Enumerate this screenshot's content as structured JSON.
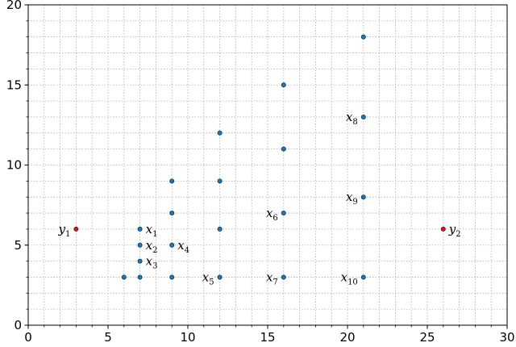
{
  "chart_data": {
    "type": "scatter",
    "title": "",
    "xlabel": "",
    "ylabel": "",
    "xlim": [
      0,
      30
    ],
    "ylim": [
      0,
      20
    ],
    "xticks": [
      0,
      5,
      10,
      15,
      20,
      25,
      30
    ],
    "yticks": [
      0,
      5,
      10,
      15,
      20
    ],
    "minor_step": 1,
    "grid": true,
    "grid_style": "dotted",
    "legend": "none",
    "colors": {
      "default_point": "#1f77b4",
      "highlight_point": "#ff0000",
      "grid": "#b0b0b0"
    },
    "points": [
      {
        "x": 3,
        "y": 6,
        "label": "y",
        "sub": "1",
        "label_side": "left",
        "highlight": true
      },
      {
        "x": 26,
        "y": 6,
        "label": "y",
        "sub": "2",
        "label_side": "right",
        "highlight": true
      },
      {
        "x": 7,
        "y": 6,
        "label": "x",
        "sub": "1",
        "label_side": "right"
      },
      {
        "x": 7,
        "y": 5,
        "label": "x",
        "sub": "2",
        "label_side": "right"
      },
      {
        "x": 7,
        "y": 4,
        "label": "x",
        "sub": "3",
        "label_side": "right"
      },
      {
        "x": 9,
        "y": 5,
        "label": "x",
        "sub": "4",
        "label_side": "right"
      },
      {
        "x": 12,
        "y": 3,
        "label": "x",
        "sub": "5",
        "label_side": "left"
      },
      {
        "x": 16,
        "y": 7,
        "label": "x",
        "sub": "6",
        "label_side": "left"
      },
      {
        "x": 16,
        "y": 3,
        "label": "x",
        "sub": "7",
        "label_side": "left"
      },
      {
        "x": 21,
        "y": 13,
        "label": "x",
        "sub": "8",
        "label_side": "left"
      },
      {
        "x": 21,
        "y": 8,
        "label": "x",
        "sub": "9",
        "label_side": "left"
      },
      {
        "x": 21,
        "y": 3,
        "label": "x",
        "sub": "10",
        "label_side": "left"
      },
      {
        "x": 6,
        "y": 3
      },
      {
        "x": 7,
        "y": 3
      },
      {
        "x": 9,
        "y": 3
      },
      {
        "x": 9,
        "y": 7
      },
      {
        "x": 9,
        "y": 9
      },
      {
        "x": 12,
        "y": 6
      },
      {
        "x": 12,
        "y": 9
      },
      {
        "x": 12,
        "y": 12
      },
      {
        "x": 16,
        "y": 11
      },
      {
        "x": 16,
        "y": 15
      },
      {
        "x": 21,
        "y": 18
      }
    ]
  }
}
